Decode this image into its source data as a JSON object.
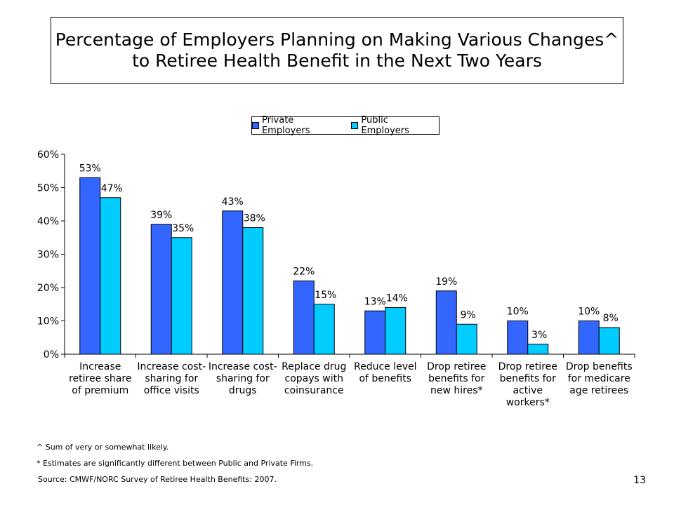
{
  "title_line1": "Percentage of Employers Planning on Making Various Changes^",
  "title_line2": "to Retiree Health Benefit in the Next Two Years",
  "chart_data": {
    "type": "bar",
    "categories": [
      [
        "Increase",
        "retiree share",
        "of premium"
      ],
      [
        "Increase cost-",
        "sharing for",
        "office visits"
      ],
      [
        "Increase cost-",
        "sharing for",
        "drugs"
      ],
      [
        "Replace drug",
        "copays with",
        "coinsurance"
      ],
      [
        "Reduce level",
        "of benefits"
      ],
      [
        "Drop retiree",
        "benefits for",
        "new hires*"
      ],
      [
        "Drop retiree",
        "benefits for",
        "active",
        "workers*"
      ],
      [
        "Drop benefits",
        "for medicare",
        "age retirees"
      ]
    ],
    "series": [
      {
        "name": "Private Employers",
        "color": "#3366ff",
        "values": [
          53,
          39,
          43,
          22,
          13,
          19,
          10,
          10
        ],
        "labels": [
          "53%",
          "39%",
          "43%",
          "22%",
          "13%",
          "19%",
          "10%",
          "10%"
        ]
      },
      {
        "name": "Public Employers",
        "color": "#00ccff",
        "values": [
          47,
          35,
          38,
          15,
          14,
          9,
          3,
          8
        ],
        "labels": [
          "47%",
          "35%",
          "38%",
          "15%",
          "14%",
          "9%",
          "3%",
          "8%"
        ]
      }
    ],
    "ylim": [
      0,
      60
    ],
    "yticks": [
      "0%",
      "10%",
      "20%",
      "30%",
      "40%",
      "50%",
      "60%"
    ],
    "legend_position": "top-center",
    "grid": false
  },
  "footnotes": {
    "caret": "^ Sum of very or somewhat likely.",
    "asterisk": "* Estimates are significantly different between Public and Private Firms.",
    "source": "Source: CMWF/NORC Survey of Retiree Health Benefits: 2007."
  },
  "page_number": "13"
}
